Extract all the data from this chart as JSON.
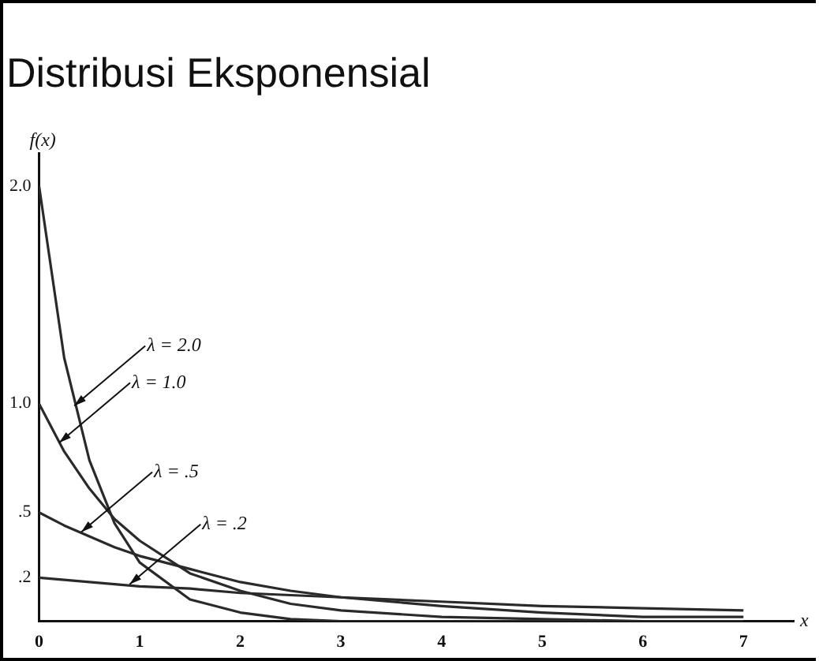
{
  "chart_data": {
    "type": "line",
    "title": "Distribusi Eksponensial",
    "xlabel": "x",
    "ylabel": "f(x)",
    "x": [
      0,
      0.25,
      0.5,
      0.75,
      1,
      1.5,
      2,
      2.5,
      3,
      4,
      5,
      6,
      7
    ],
    "series": [
      {
        "color": "#2a2a2a",
        "values": [
          2,
          1.21,
          0.74,
          0.45,
          0.27,
          0.1,
          0.04,
          0.01,
          0,
          0,
          0,
          0,
          0
        ]
      },
      {
        "color": "#2a2a2a",
        "values": [
          1,
          0.78,
          0.61,
          0.47,
          0.37,
          0.22,
          0.14,
          0.08,
          0.05,
          0.02,
          0.01,
          0,
          0
        ]
      },
      {
        "color": "#2a2a2a",
        "values": [
          0.5,
          0.44,
          0.39,
          0.34,
          0.3,
          0.24,
          0.18,
          0.14,
          0.11,
          0.07,
          0.04,
          0.02,
          0.02
        ]
      },
      {
        "color": "#2a2a2a",
        "values": [
          0.2,
          0.19,
          0.18,
          0.17,
          0.16,
          0.15,
          0.13,
          0.12,
          0.11,
          0.09,
          0.07,
          0.06,
          0.05
        ]
      }
    ],
    "annotations": [
      {
        "text": "λ = 2.0",
        "x": 0.35,
        "y": 0.99
      },
      {
        "text": "λ = 1.0",
        "x": 0.2,
        "y": 0.82
      },
      {
        "text": "λ = .5",
        "x": 0.42,
        "y": 0.41
      },
      {
        "text": "λ = .2",
        "x": 0.9,
        "y": 0.17
      }
    ],
    "xlim": [
      0,
      7.5
    ],
    "ylim": [
      0,
      2.15
    ],
    "xticks": [
      0,
      1,
      2,
      3,
      4,
      5,
      6,
      7
    ],
    "yticks": [
      {
        "value": 0.2,
        "label": ".2"
      },
      {
        "value": 0.5,
        "label": ".5"
      },
      {
        "value": 1,
        "label": "1.0"
      },
      {
        "value": 2,
        "label": "2.0"
      }
    ],
    "grid": false,
    "legend": false,
    "marker": "none",
    "line_style": "solid"
  }
}
